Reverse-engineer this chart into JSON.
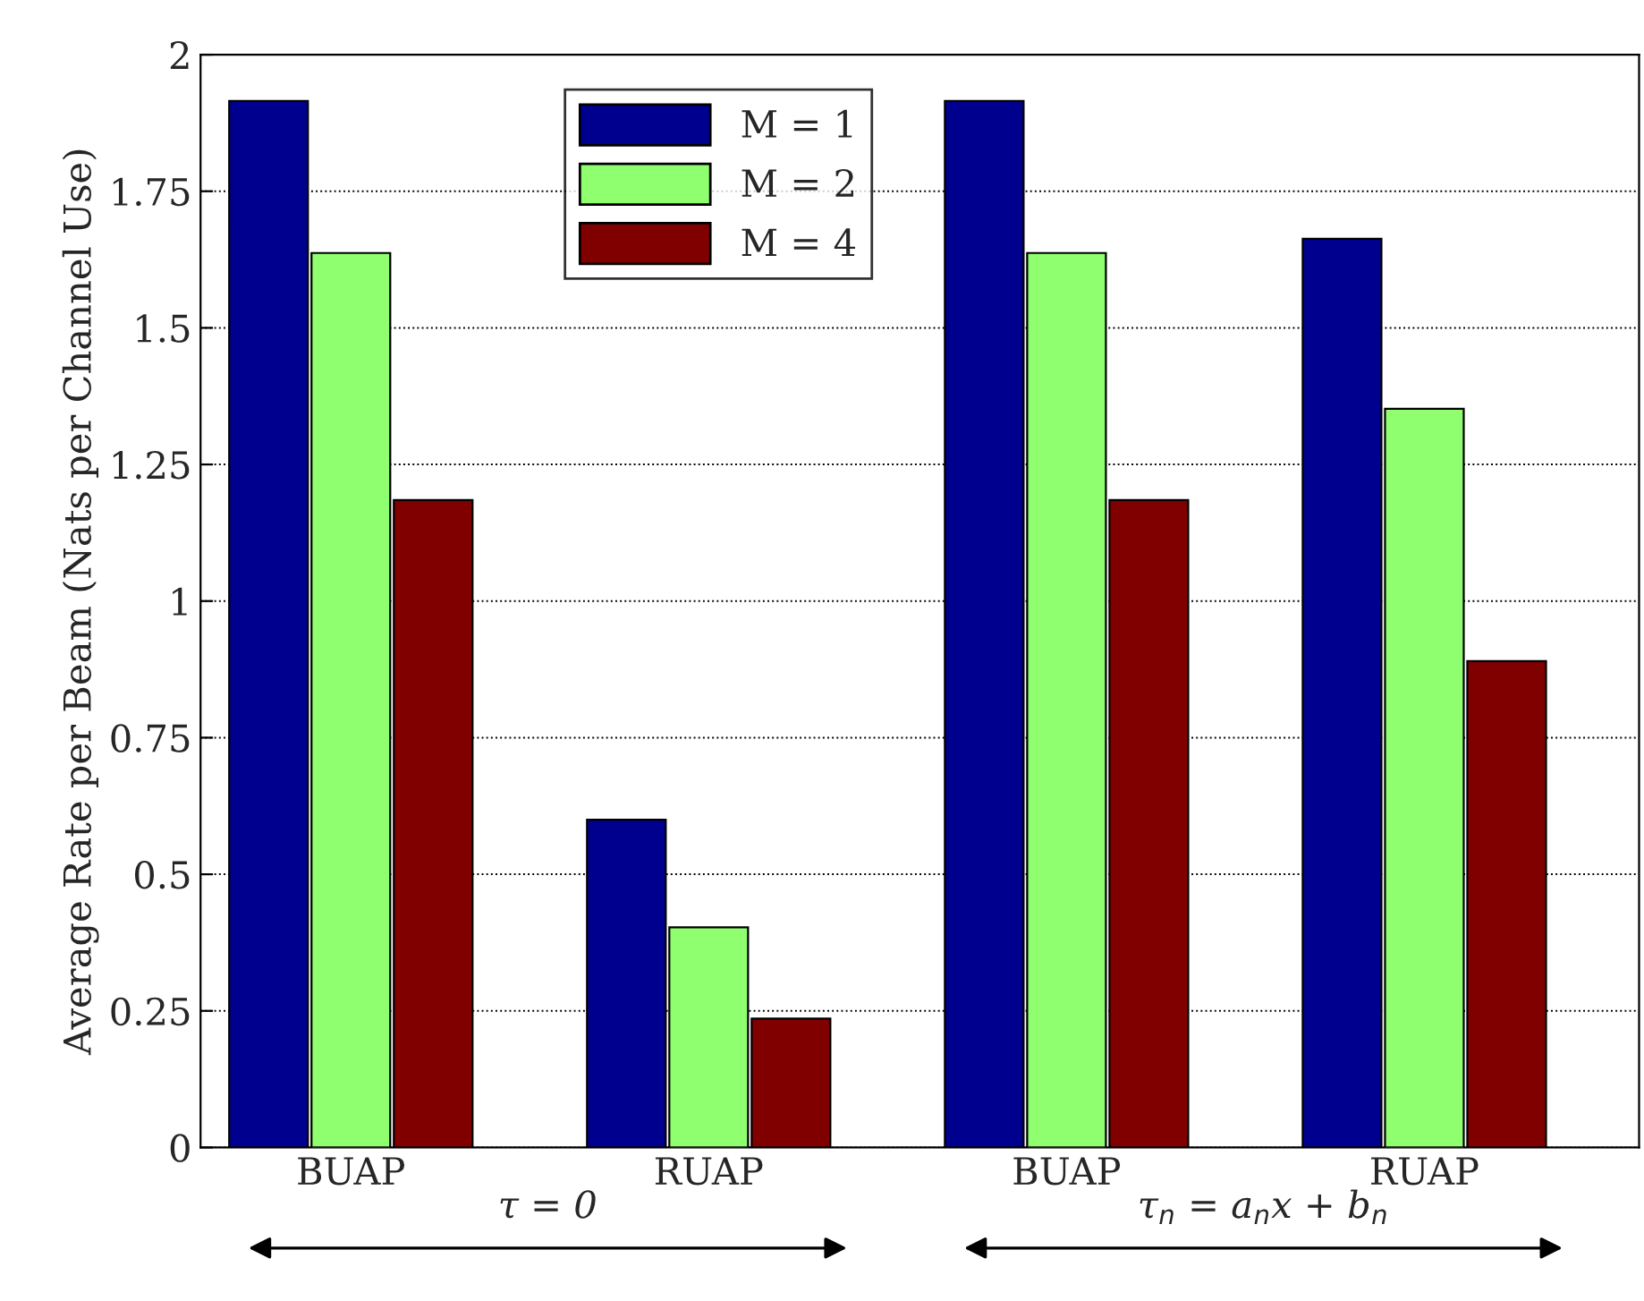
{
  "chart_data": {
    "type": "bar",
    "ylabel": "Average Rate per Beam (Nats per Channel Use)",
    "categories": [
      "BUAP",
      "RUAP",
      "BUAP",
      "RUAP"
    ],
    "series": [
      {
        "name": "M = 1",
        "color": "#00008f",
        "values": [
          1.915,
          0.6,
          1.915,
          1.663
        ]
      },
      {
        "name": "M = 2",
        "color": "#8fff70",
        "values": [
          1.637,
          0.403,
          1.637,
          1.352
        ]
      },
      {
        "name": "M = 4",
        "color": "#800000",
        "values": [
          1.185,
          0.236,
          1.185,
          0.89
        ]
      }
    ],
    "ylim": [
      0,
      2
    ],
    "yticks": [
      0,
      0.25,
      0.5,
      0.75,
      1,
      1.25,
      1.5,
      1.75,
      2
    ],
    "grid": "y",
    "legend": "top",
    "annotations": [
      "τ = 0",
      "τ$_{n}$ = a$_{n}$x + b$_{n}$"
    ]
  }
}
